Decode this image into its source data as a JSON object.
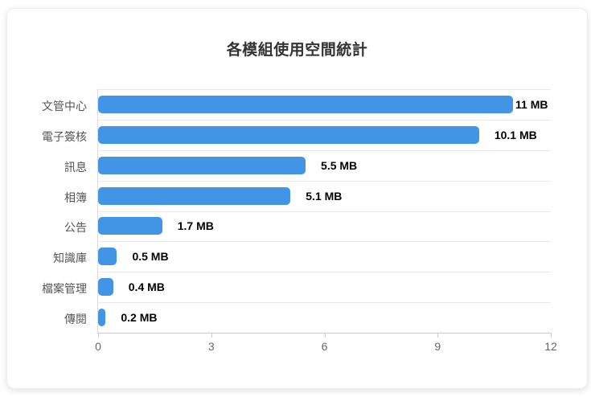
{
  "chart_data": {
    "type": "bar",
    "orientation": "horizontal",
    "title": "各模組使用空間統計",
    "categories": [
      "文管中心",
      "電子簽核",
      "訊息",
      "相簿",
      "公告",
      "知識庫",
      "檔案管理",
      "傳閱"
    ],
    "values": [
      11,
      10.1,
      5.5,
      5.1,
      1.7,
      0.5,
      0.4,
      0.2
    ],
    "value_labels": [
      "11 MB",
      "10.1 MB",
      "5.5 MB",
      "5.1 MB",
      "1.7 MB",
      "0.5 MB",
      "0.4 MB",
      "0.2 MB"
    ],
    "xlabel": "",
    "ylabel": "",
    "xlim": [
      0,
      12
    ],
    "x_ticks": [
      0,
      3,
      6,
      9,
      12
    ],
    "grid": "horizontal-row-separators",
    "legend": "none",
    "bar_color": "#4295e5"
  }
}
